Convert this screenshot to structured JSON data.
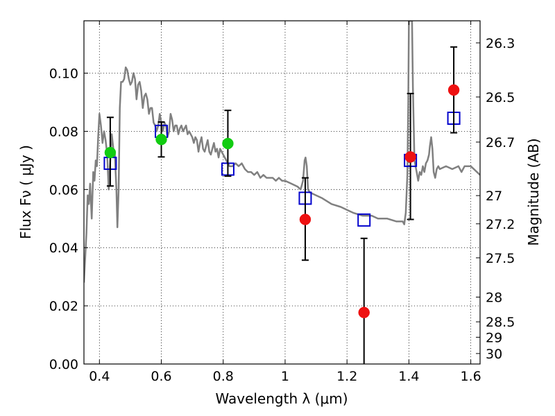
{
  "chart_data": {
    "type": "scatter",
    "title": "",
    "xlabel": "Wavelength  λ (μm)",
    "ylabel": "Flux  Fν  ( μJy )",
    "y2label": "Magnitude (AB)",
    "xlim": [
      0.35,
      1.63
    ],
    "ylim": [
      0.0,
      0.118
    ],
    "grid": true,
    "xticks": [
      0.4,
      0.6,
      0.8,
      1.0,
      1.2,
      1.4,
      1.6
    ],
    "xtick_labels": [
      "0.4",
      "0.6",
      "0.8",
      "1",
      "1.2",
      "1.4",
      "1.6"
    ],
    "yticks": [
      0.0,
      0.02,
      0.04,
      0.06,
      0.08,
      0.1
    ],
    "ytick_labels": [
      "0.00",
      "0.02",
      "0.04",
      "0.06",
      "0.08",
      "0.10"
    ],
    "y2ticks": [
      {
        "label": "26.3",
        "flux": 0.1104
      },
      {
        "label": "26.5",
        "flux": 0.0918
      },
      {
        "label": "26.7",
        "flux": 0.0763
      },
      {
        "label": "27",
        "flux": 0.0579
      },
      {
        "label": "27.2",
        "flux": 0.0482
      },
      {
        "label": "27.5",
        "flux": 0.0365
      },
      {
        "label": "28",
        "flux": 0.023
      },
      {
        "label": "28.5",
        "flux": 0.0145
      },
      {
        "label": "29",
        "flux": 0.0092
      },
      {
        "label": "30",
        "flux": 0.0036
      }
    ],
    "series": [
      {
        "type": "line",
        "color": "#808080",
        "points": [
          [
            0.35,
            0.028
          ],
          [
            0.358,
            0.045
          ],
          [
            0.362,
            0.058
          ],
          [
            0.366,
            0.055
          ],
          [
            0.37,
            0.062
          ],
          [
            0.375,
            0.05
          ],
          [
            0.38,
            0.066
          ],
          [
            0.384,
            0.063
          ],
          [
            0.388,
            0.07
          ],
          [
            0.392,
            0.068
          ],
          [
            0.396,
            0.078
          ],
          [
            0.4,
            0.086
          ],
          [
            0.405,
            0.082
          ],
          [
            0.41,
            0.076
          ],
          [
            0.415,
            0.08
          ],
          [
            0.42,
            0.077
          ],
          [
            0.425,
            0.072
          ],
          [
            0.43,
            0.06
          ],
          [
            0.434,
            0.068
          ],
          [
            0.44,
            0.079
          ],
          [
            0.445,
            0.074
          ],
          [
            0.45,
            0.072
          ],
          [
            0.455,
            0.06
          ],
          [
            0.458,
            0.047
          ],
          [
            0.462,
            0.06
          ],
          [
            0.466,
            0.088
          ],
          [
            0.47,
            0.097
          ],
          [
            0.475,
            0.097
          ],
          [
            0.48,
            0.098
          ],
          [
            0.485,
            0.102
          ],
          [
            0.49,
            0.101
          ],
          [
            0.495,
            0.098
          ],
          [
            0.5,
            0.096
          ],
          [
            0.505,
            0.097
          ],
          [
            0.51,
            0.1
          ],
          [
            0.515,
            0.098
          ],
          [
            0.52,
            0.091
          ],
          [
            0.525,
            0.096
          ],
          [
            0.53,
            0.097
          ],
          [
            0.535,
            0.094
          ],
          [
            0.54,
            0.088
          ],
          [
            0.545,
            0.092
          ],
          [
            0.55,
            0.093
          ],
          [
            0.555,
            0.091
          ],
          [
            0.56,
            0.086
          ],
          [
            0.565,
            0.088
          ],
          [
            0.57,
            0.088
          ],
          [
            0.575,
            0.083
          ],
          [
            0.58,
            0.082
          ],
          [
            0.585,
            0.08
          ],
          [
            0.59,
            0.082
          ],
          [
            0.595,
            0.086
          ],
          [
            0.6,
            0.083
          ],
          [
            0.605,
            0.08
          ],
          [
            0.61,
            0.083
          ],
          [
            0.615,
            0.082
          ],
          [
            0.62,
            0.078
          ],
          [
            0.625,
            0.08
          ],
          [
            0.63,
            0.086
          ],
          [
            0.635,
            0.084
          ],
          [
            0.64,
            0.08
          ],
          [
            0.645,
            0.082
          ],
          [
            0.65,
            0.082
          ],
          [
            0.655,
            0.079
          ],
          [
            0.66,
            0.081
          ],
          [
            0.665,
            0.082
          ],
          [
            0.67,
            0.08
          ],
          [
            0.675,
            0.081
          ],
          [
            0.68,
            0.082
          ],
          [
            0.685,
            0.079
          ],
          [
            0.69,
            0.08
          ],
          [
            0.7,
            0.078
          ],
          [
            0.705,
            0.076
          ],
          [
            0.71,
            0.078
          ],
          [
            0.715,
            0.077
          ],
          [
            0.72,
            0.073
          ],
          [
            0.725,
            0.076
          ],
          [
            0.73,
            0.078
          ],
          [
            0.735,
            0.074
          ],
          [
            0.74,
            0.073
          ],
          [
            0.745,
            0.075
          ],
          [
            0.75,
            0.077
          ],
          [
            0.755,
            0.073
          ],
          [
            0.76,
            0.072
          ],
          [
            0.765,
            0.074
          ],
          [
            0.77,
            0.076
          ],
          [
            0.775,
            0.073
          ],
          [
            0.78,
            0.074
          ],
          [
            0.785,
            0.071
          ],
          [
            0.79,
            0.074
          ],
          [
            0.8,
            0.072
          ],
          [
            0.81,
            0.07
          ],
          [
            0.82,
            0.068
          ],
          [
            0.83,
            0.068
          ],
          [
            0.84,
            0.069
          ],
          [
            0.85,
            0.068
          ],
          [
            0.86,
            0.069
          ],
          [
            0.87,
            0.067
          ],
          [
            0.88,
            0.066
          ],
          [
            0.89,
            0.066
          ],
          [
            0.9,
            0.065
          ],
          [
            0.91,
            0.066
          ],
          [
            0.92,
            0.064
          ],
          [
            0.93,
            0.065
          ],
          [
            0.94,
            0.064
          ],
          [
            0.95,
            0.064
          ],
          [
            0.96,
            0.064
          ],
          [
            0.97,
            0.063
          ],
          [
            0.98,
            0.064
          ],
          [
            0.99,
            0.063
          ],
          [
            1.0,
            0.063
          ],
          [
            1.02,
            0.062
          ],
          [
            1.04,
            0.061
          ],
          [
            1.05,
            0.06
          ],
          [
            1.058,
            0.063
          ],
          [
            1.063,
            0.07
          ],
          [
            1.066,
            0.071
          ],
          [
            1.07,
            0.068
          ],
          [
            1.074,
            0.06
          ],
          [
            1.08,
            0.059
          ],
          [
            1.1,
            0.058
          ],
          [
            1.12,
            0.057
          ],
          [
            1.15,
            0.055
          ],
          [
            1.18,
            0.054
          ],
          [
            1.2,
            0.053
          ],
          [
            1.22,
            0.052
          ],
          [
            1.25,
            0.051
          ],
          [
            1.28,
            0.051
          ],
          [
            1.3,
            0.05
          ],
          [
            1.33,
            0.05
          ],
          [
            1.36,
            0.049
          ],
          [
            1.38,
            0.049
          ],
          [
            1.385,
            0.048
          ],
          [
            1.39,
            0.052
          ],
          [
            1.395,
            0.065
          ],
          [
            1.398,
            0.09
          ],
          [
            1.4,
            0.118
          ],
          [
            1.41,
            0.118
          ],
          [
            1.413,
            0.095
          ],
          [
            1.418,
            0.07
          ],
          [
            1.425,
            0.066
          ],
          [
            1.43,
            0.063
          ],
          [
            1.435,
            0.066
          ],
          [
            1.44,
            0.065
          ],
          [
            1.445,
            0.068
          ],
          [
            1.45,
            0.066
          ],
          [
            1.455,
            0.069
          ],
          [
            1.46,
            0.07
          ],
          [
            1.465,
            0.072
          ],
          [
            1.468,
            0.075
          ],
          [
            1.472,
            0.078
          ],
          [
            1.476,
            0.074
          ],
          [
            1.48,
            0.066
          ],
          [
            1.485,
            0.064
          ],
          [
            1.49,
            0.067
          ],
          [
            1.495,
            0.068
          ],
          [
            1.5,
            0.067
          ],
          [
            1.52,
            0.068
          ],
          [
            1.54,
            0.067
          ],
          [
            1.56,
            0.068
          ],
          [
            1.57,
            0.066
          ],
          [
            1.58,
            0.068
          ],
          [
            1.6,
            0.068
          ],
          [
            1.62,
            0.066
          ],
          [
            1.63,
            0.065
          ]
        ]
      },
      {
        "type": "open_square",
        "color": "#0000cc",
        "x": [
          0.435,
          0.6,
          0.815,
          1.065,
          1.255,
          1.405,
          1.545
        ],
        "y": [
          0.069,
          0.08,
          0.067,
          0.057,
          0.0495,
          0.07,
          0.0845
        ]
      },
      {
        "type": "point_with_error",
        "color": "#11cc11",
        "x": [
          0.435,
          0.6,
          0.815
        ],
        "y": [
          0.0727,
          0.0772,
          0.0758
        ],
        "yerr_low": [
          0.0612,
          0.0712,
          0.0646
        ],
        "yerr_high": [
          0.0848,
          0.0832,
          0.0872
        ]
      },
      {
        "type": "point_with_error",
        "color": "#ee1111",
        "x": [
          1.065,
          1.255,
          1.405,
          1.545
        ],
        "y": [
          0.0497,
          0.0177,
          0.0712,
          0.0942
        ],
        "yerr_low": [
          0.0357,
          0.0,
          0.0497,
          0.0795
        ],
        "yerr_high": [
          0.064,
          0.0432,
          0.093,
          0.109
        ]
      }
    ]
  }
}
